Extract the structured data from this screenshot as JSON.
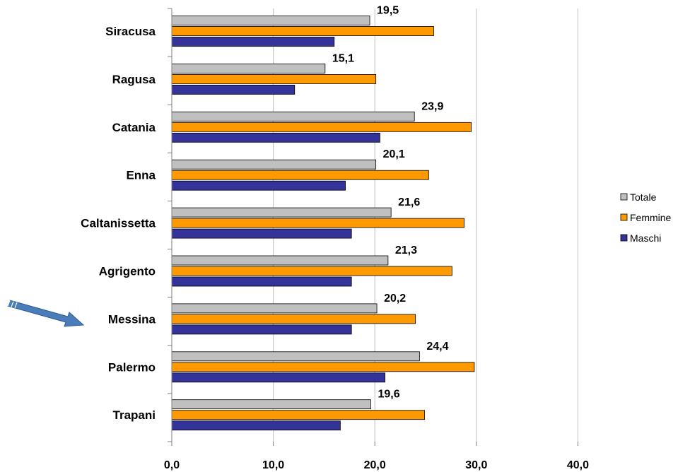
{
  "chart_data": {
    "type": "bar",
    "orientation": "horizontal",
    "categories": [
      "Siracusa",
      "Ragusa",
      "Catania",
      "Enna",
      "Caltanissetta",
      "Agrigento",
      "Messina",
      "Palermo",
      "Trapani"
    ],
    "series": [
      {
        "name": "Totale",
        "color": "#c0c0c0",
        "values": [
          19.5,
          15.1,
          23.9,
          20.1,
          21.6,
          21.3,
          20.2,
          24.4,
          19.6
        ]
      },
      {
        "name": "Femmine",
        "color": "#ff9900",
        "values": [
          25.8,
          20.1,
          29.5,
          25.3,
          28.8,
          27.6,
          24.0,
          29.8,
          24.9
        ]
      },
      {
        "name": "Maschi",
        "color": "#333399",
        "values": [
          16.0,
          12.1,
          20.5,
          17.1,
          17.7,
          17.7,
          17.7,
          21.0,
          16.6
        ]
      }
    ],
    "data_labels": [
      "19,5",
      "15,1",
      "23,9",
      "20,1",
      "21,6",
      "21,3",
      "20,2",
      "24,4",
      "19,6"
    ],
    "xticks": [
      "0,0",
      "10,0",
      "20,0",
      "30,0",
      "40,0"
    ],
    "xlim": [
      0,
      40
    ],
    "grid": "vertical",
    "legend_position": "right",
    "highlight_arrow": {
      "target": "Messina",
      "color": "#4a7ebb"
    }
  }
}
